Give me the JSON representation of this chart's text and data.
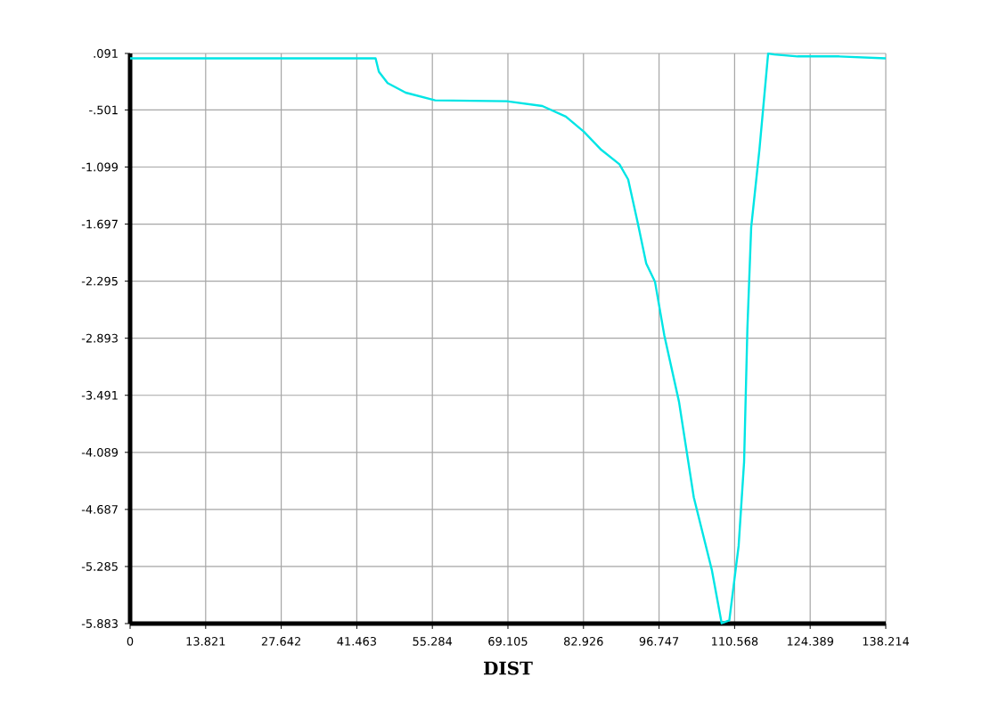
{
  "chart_data": {
    "type": "line",
    "xlabel": "DIST",
    "xlim": [
      0,
      138.214
    ],
    "ylim": [
      -5.883,
      0.091
    ],
    "xticks": [
      0,
      13.821,
      27.642,
      41.463,
      55.284,
      69.105,
      82.926,
      96.747,
      110.568,
      124.389,
      138.214
    ],
    "yticks": [
      {
        "value": 0.091,
        "label": ".091"
      },
      {
        "value": -0.501,
        "label": "-.501"
      },
      -1.099,
      -1.697,
      -2.295,
      -2.893,
      -3.491,
      -4.089,
      -4.687,
      -5.285,
      -5.883
    ],
    "grid": true,
    "line_style": "solid",
    "series": [
      {
        "color": "#00e5e5",
        "x": [
          0,
          44.9,
          45.5,
          47.1,
          50.4,
          55.8,
          68.9,
          75.4,
          79.7,
          83.0,
          86.2,
          89.5,
          91.1,
          92.8,
          94.4,
          96.0,
          97.7,
          100.4,
          103.1,
          106.4,
          108.2,
          109.6,
          111.3,
          112.3,
          112.9,
          113.6,
          115.1,
          115.8,
          116.7,
          117.8,
          122.1,
          129.7,
          138.214
        ],
        "values": [
          0.04,
          0.04,
          -0.1,
          -0.22,
          -0.32,
          -0.4,
          -0.41,
          -0.46,
          -0.57,
          -0.73,
          -0.92,
          -1.07,
          -1.23,
          -1.67,
          -2.11,
          -2.3,
          -2.86,
          -3.56,
          -4.56,
          -5.32,
          -5.88,
          -5.85,
          -5.07,
          -4.19,
          -2.8,
          -1.73,
          -0.92,
          -0.48,
          0.09,
          0.08,
          0.06,
          0.06,
          0.04
        ]
      }
    ]
  }
}
